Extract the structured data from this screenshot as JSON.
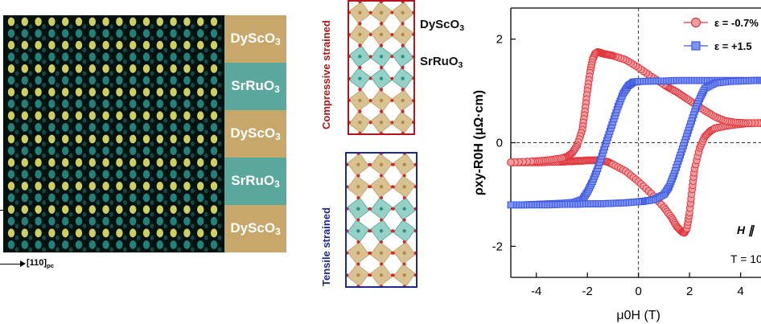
{
  "stem": {
    "layers": [
      {
        "name": "DyScO",
        "sub": "3",
        "type": "dso"
      },
      {
        "name": "SrRuO",
        "sub": "3",
        "type": "sro"
      },
      {
        "name": "DyScO",
        "sub": "3",
        "type": "dso"
      },
      {
        "name": "SrRuO",
        "sub": "3",
        "type": "sro"
      },
      {
        "name": "DyScO",
        "sub": "3",
        "type": "dso"
      }
    ],
    "direction_label": "[110]",
    "direction_sub": "pc"
  },
  "structures": {
    "compressive_label": "Compressive strained",
    "tensile_label": "Tensile strained",
    "dso_label": "DyScO",
    "dso_sub": "3",
    "sro_label": "SrRuO",
    "sro_sub": "3"
  },
  "colors": {
    "compressive": "#b1141b",
    "tensile": "#1b2a8c",
    "dso": "#c8a86a",
    "sro": "#5aa79c",
    "red_series": "#e0373e",
    "blue_series": "#3d57e0"
  },
  "chart_data": {
    "type": "scatter",
    "xlabel": "μ0H (T)",
    "ylabel": "ρxy-R0H (μΩ·cm)",
    "xlim": [
      -5,
      4.8
    ],
    "ylim": [
      -2.6,
      2.6
    ],
    "x_ticks": [
      -4,
      -2,
      0,
      2,
      4
    ],
    "y_ticks": [
      -2,
      0,
      2
    ],
    "legend_position": "top-right",
    "annotations": [
      "H ∥",
      "T = 10"
    ],
    "series": [
      {
        "name": "ε = -0.7%",
        "marker": "circle",
        "x": [
          -5.0,
          -4.6,
          -4.2,
          -3.8,
          -3.4,
          -3.0,
          -2.8,
          -2.6,
          -2.4,
          -2.2,
          -2.0,
          -1.8,
          -1.6,
          -1.4,
          -1.2,
          -1.0,
          -0.5,
          0.0,
          0.5,
          1.0,
          1.3,
          1.5,
          1.7,
          1.8,
          1.9,
          2.0,
          2.1,
          2.2,
          2.4,
          2.6,
          2.8,
          3.0,
          3.4,
          3.8,
          4.2,
          4.8,
          4.8,
          4.2,
          3.8,
          3.4,
          3.0,
          2.6,
          2.2,
          1.8,
          1.5,
          1.2,
          1.0,
          0.5,
          0.0,
          -0.5,
          -1.0,
          -1.2,
          -1.4,
          -1.5,
          -1.6,
          -1.7,
          -1.8,
          -1.9,
          -2.0,
          -2.1,
          -2.2,
          -2.4,
          -2.6,
          -2.8,
          -3.0,
          -3.4,
          -3.8,
          -4.2,
          -5.0
        ],
        "y": [
          -0.38,
          -0.38,
          -0.38,
          -0.38,
          -0.37,
          -0.37,
          -0.36,
          -0.36,
          -0.35,
          -0.35,
          -0.34,
          -0.34,
          -0.34,
          -0.35,
          -0.37,
          -0.42,
          -0.55,
          -0.75,
          -0.98,
          -1.25,
          -1.45,
          -1.62,
          -1.72,
          -1.74,
          -1.65,
          -1.35,
          -0.9,
          -0.5,
          -0.1,
          0.12,
          0.22,
          0.28,
          0.32,
          0.35,
          0.37,
          0.38,
          0.38,
          0.38,
          0.39,
          0.42,
          0.5,
          0.62,
          0.75,
          0.88,
          0.98,
          1.06,
          1.12,
          1.28,
          1.45,
          1.6,
          1.68,
          1.7,
          1.72,
          1.74,
          1.75,
          1.72,
          1.6,
          1.35,
          1.0,
          0.6,
          0.25,
          -0.05,
          -0.2,
          -0.27,
          -0.3,
          -0.33,
          -0.35,
          -0.36,
          -0.38
        ]
      },
      {
        "name": "ε = +1.5",
        "marker": "square",
        "x": [
          -5.0,
          -4.5,
          -4.0,
          -3.5,
          -3.0,
          -2.5,
          -2.2,
          -2.0,
          -1.8,
          -1.6,
          -1.4,
          -1.2,
          -1.0,
          -0.8,
          -0.6,
          -0.4,
          -0.2,
          0.0,
          0.5,
          1.0,
          1.5,
          2.0,
          2.5,
          3.0,
          3.5,
          4.0,
          4.5,
          4.8,
          4.8,
          4.5,
          4.0,
          3.5,
          3.0,
          2.6,
          2.4,
          2.2,
          2.0,
          1.8,
          1.6,
          1.4,
          1.2,
          1.0,
          0.6,
          0.2,
          0.0,
          -0.5,
          -1.0,
          -1.5,
          -2.0,
          -2.5,
          -3.0,
          -3.5,
          -4.0,
          -4.5,
          -5.0
        ],
        "y": [
          -1.2,
          -1.2,
          -1.19,
          -1.18,
          -1.17,
          -1.15,
          -1.1,
          -0.95,
          -0.75,
          -0.5,
          -0.2,
          0.1,
          0.4,
          0.7,
          0.95,
          1.1,
          1.17,
          1.18,
          1.19,
          1.19,
          1.2,
          1.2,
          1.2,
          1.2,
          1.2,
          1.2,
          1.2,
          1.2,
          1.2,
          1.2,
          1.19,
          1.18,
          1.15,
          1.05,
          0.85,
          0.6,
          0.3,
          0.0,
          -0.3,
          -0.6,
          -0.85,
          -1.0,
          -1.1,
          -1.13,
          -1.14,
          -1.16,
          -1.17,
          -1.18,
          -1.18,
          -1.19,
          -1.19,
          -1.2,
          -1.2,
          -1.2,
          -1.2
        ]
      }
    ]
  }
}
